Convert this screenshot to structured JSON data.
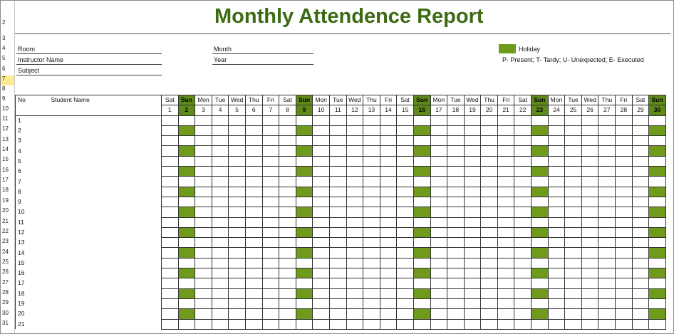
{
  "title": "Monthly Attendence Report",
  "row_numbers": [
    "2",
    "3",
    "4",
    "5",
    "6",
    "7",
    "8",
    "9",
    "10",
    "11",
    "12",
    "13",
    "14",
    "15",
    "16",
    "17",
    "18",
    "19",
    "20",
    "21",
    "22",
    "23",
    "24",
    "25",
    "26",
    "27",
    "28",
    "29",
    "30",
    "31"
  ],
  "info": {
    "room_label": "Room",
    "instructor_label": "Instructor Name",
    "subject_label": "Subject",
    "month_label": "Month",
    "year_label": "Year"
  },
  "legend": {
    "holiday_label": "Holiday",
    "holiday_color": "#6f9a1c",
    "codes": "P- Present; T- Tardy; U- Unexpected; E- Executed"
  },
  "table": {
    "no_header": "No",
    "name_header": "Student Name",
    "days": [
      "Sat",
      "Sun",
      "Mon",
      "Tue",
      "Wed",
      "Thu",
      "Fri",
      "Sat",
      "Sun",
      "Mon",
      "Tue",
      "Wed",
      "Thu",
      "Fri",
      "Sat",
      "Sun",
      "Mon",
      "Tue",
      "Wed",
      "Thu",
      "Fri",
      "Sat",
      "Sun",
      "Mon",
      "Tue",
      "Wed",
      "Thu",
      "Fri",
      "Sat",
      "Sun"
    ],
    "dates": [
      "1",
      "2",
      "3",
      "4",
      "5",
      "6",
      "7",
      "8",
      "9",
      "10",
      "11",
      "12",
      "13",
      "14",
      "15",
      "16",
      "17",
      "18",
      "19",
      "20",
      "21",
      "22",
      "23",
      "24",
      "25",
      "26",
      "27",
      "28",
      "29",
      "30"
    ],
    "student_numbers": [
      "1",
      "2",
      "3",
      "4",
      "5",
      "6",
      "7",
      "8",
      "9",
      "10",
      "11",
      "12",
      "13",
      "14",
      "15",
      "16",
      "17",
      "18",
      "19",
      "20",
      "21"
    ]
  }
}
